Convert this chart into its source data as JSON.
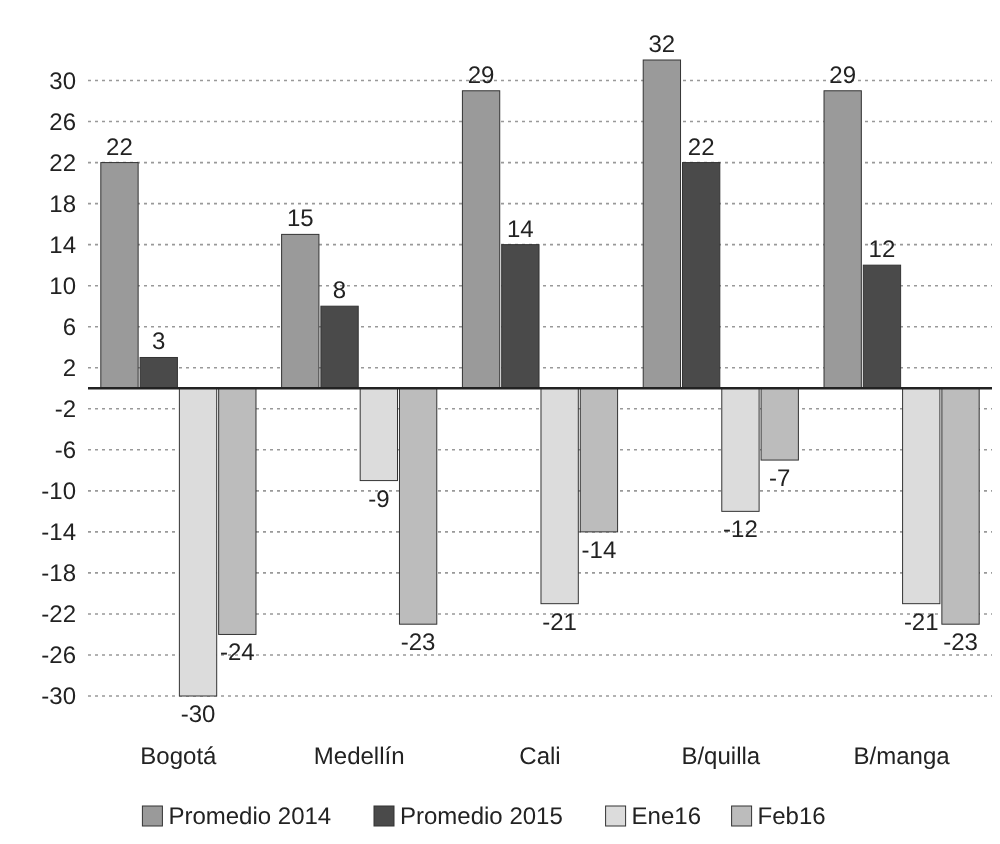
{
  "chart_data": {
    "type": "bar",
    "categories": [
      "Bogotá",
      "Medellín",
      "Cali",
      "B/quilla",
      "B/manga"
    ],
    "series": [
      {
        "name": "Promedio 2014",
        "color": "#9a9a9a",
        "values": [
          22,
          15,
          29,
          32,
          29
        ]
      },
      {
        "name": "Promedio 2015",
        "color": "#4a4a4a",
        "values": [
          3,
          8,
          14,
          22,
          12
        ]
      },
      {
        "name": "Ene16",
        "color": "#dcdcdc",
        "values": [
          -30,
          -9,
          -21,
          -12,
          -21
        ]
      },
      {
        "name": "Feb16",
        "color": "#bcbcbc",
        "values": [
          -24,
          -23,
          -14,
          -7,
          -23
        ]
      }
    ],
    "ylim": [
      -30,
      32
    ],
    "yticks": [
      30,
      26,
      22,
      18,
      14,
      10,
      6,
      2,
      -2,
      -6,
      -10,
      -14,
      -18,
      -22,
      -26,
      -30
    ],
    "grid": "y",
    "data_labels": true,
    "legend": "bottom"
  }
}
